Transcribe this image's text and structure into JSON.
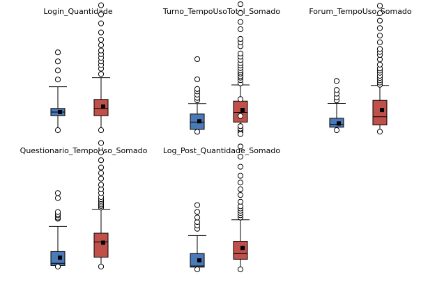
{
  "colors": {
    "group_a": "#4a7ab8",
    "group_b": "#c0504a",
    "stroke": "#000000",
    "outlier_fill": "#ffffff",
    "mean_marker": "#000000"
  },
  "chart_data": [
    {
      "type": "boxplot",
      "title": "Login_Quantidade",
      "series": [
        {
          "box": [
            0.08,
            0.12
          ],
          "whiskers": [
            0.0,
            0.24
          ],
          "median": 0.1,
          "mean": 0.1,
          "outliers": [
            0.28,
            0.33,
            0.38,
            0.43,
            0.0
          ]
        },
        {
          "box": [
            0.08,
            0.17
          ],
          "whiskers": [
            0.0,
            0.29
          ],
          "median": 0.12,
          "mean": 0.13,
          "outliers": [
            0.31,
            0.34,
            0.36,
            0.38,
            0.4,
            0.42,
            0.44,
            0.47,
            0.5,
            0.54,
            0.59,
            0.64,
            0.69,
            0.0
          ]
        }
      ]
    },
    {
      "type": "boxplot",
      "title": "Turno_TempoUsoTotal_Somado",
      "series": [
        {
          "box": [
            0.01,
            0.2
          ],
          "whiskers": [
            -0.02,
            0.33
          ],
          "median": 0.1,
          "mean": 0.11,
          "outliers": [
            0.37,
            0.4,
            0.44,
            0.48,
            0.51,
            0.63,
            0.88,
            -0.02
          ]
        },
        {
          "box": [
            0.1,
            0.36
          ],
          "whiskers": [
            -0.04,
            0.56
          ],
          "median": 0.22,
          "mean": 0.25,
          "outliers": [
            0.58,
            0.62,
            0.65,
            0.67,
            0.7,
            0.72,
            0.74,
            0.77,
            0.8,
            0.83,
            0.87,
            0.91,
            0.95,
            1.04,
            1.09,
            1.13,
            1.25,
            1.34,
            1.45,
            1.56,
            -0.02,
            0.0,
            0.02,
            0.05
          ]
        }
      ]
    },
    {
      "type": "boxplot",
      "title": "Forum_TempoUso_Somado",
      "series": [
        {
          "box": [
            0.04,
            0.16
          ],
          "whiskers": [
            0.0,
            0.36
          ],
          "median": 0.08,
          "mean": 0.09,
          "outliers": [
            0.4,
            0.44,
            0.49,
            0.54,
            0.66,
            0.0
          ]
        },
        {
          "box": [
            0.07,
            0.4
          ],
          "whiskers": [
            -0.02,
            0.6
          ],
          "median": 0.18,
          "mean": 0.27,
          "outliers": [
            0.61,
            0.64,
            0.67,
            0.7,
            0.73,
            0.77,
            0.8,
            0.83,
            0.88,
            0.95,
            1.01,
            1.05,
            1.09,
            1.18,
            1.27,
            1.37,
            1.47,
            1.57,
            1.67,
            -0.02
          ]
        }
      ]
    },
    {
      "type": "boxplot",
      "title": "Questionario_TempoUso_Somado",
      "series": [
        {
          "box": [
            0.02,
            0.27
          ],
          "whiskers": [
            -0.04,
            0.72
          ],
          "median": 0.06,
          "mean": 0.16,
          "outliers": [
            0.86,
            0.88,
            0.92,
            0.94,
            0.98,
            1.23,
            1.32,
            0.0
          ]
        },
        {
          "box": [
            0.17,
            0.6
          ],
          "whiskers": [
            0.0,
            1.03
          ],
          "median": 0.44,
          "mean": 0.43,
          "outliers": [
            1.06,
            1.09,
            1.12,
            1.15,
            1.18,
            1.21,
            1.25,
            1.32,
            1.39,
            1.47,
            1.58,
            1.68,
            1.78,
            1.91,
            2.05,
            2.22,
            0.0
          ]
        }
      ]
    },
    {
      "type": "boxplot",
      "title": "Log_Post_Quantidade_Somado",
      "series": [
        {
          "box": [
            0.02,
            0.14
          ],
          "whiskers": [
            0.0,
            0.3
          ],
          "median": 0.03,
          "mean": 0.08,
          "outliers": [
            0.36,
            0.39,
            0.42,
            0.46,
            0.51,
            0.57,
            0.0
          ]
        },
        {
          "box": [
            0.09,
            0.25
          ],
          "whiskers": [
            0.0,
            0.44
          ],
          "median": 0.14,
          "mean": 0.19,
          "outliers": [
            0.46,
            0.48,
            0.5,
            0.52,
            0.54,
            0.56,
            0.6,
            0.66,
            0.71,
            0.77,
            0.83,
            0.91,
            1.0,
            1.09,
            1.2,
            1.36,
            1.51,
            0.0
          ]
        }
      ]
    }
  ]
}
